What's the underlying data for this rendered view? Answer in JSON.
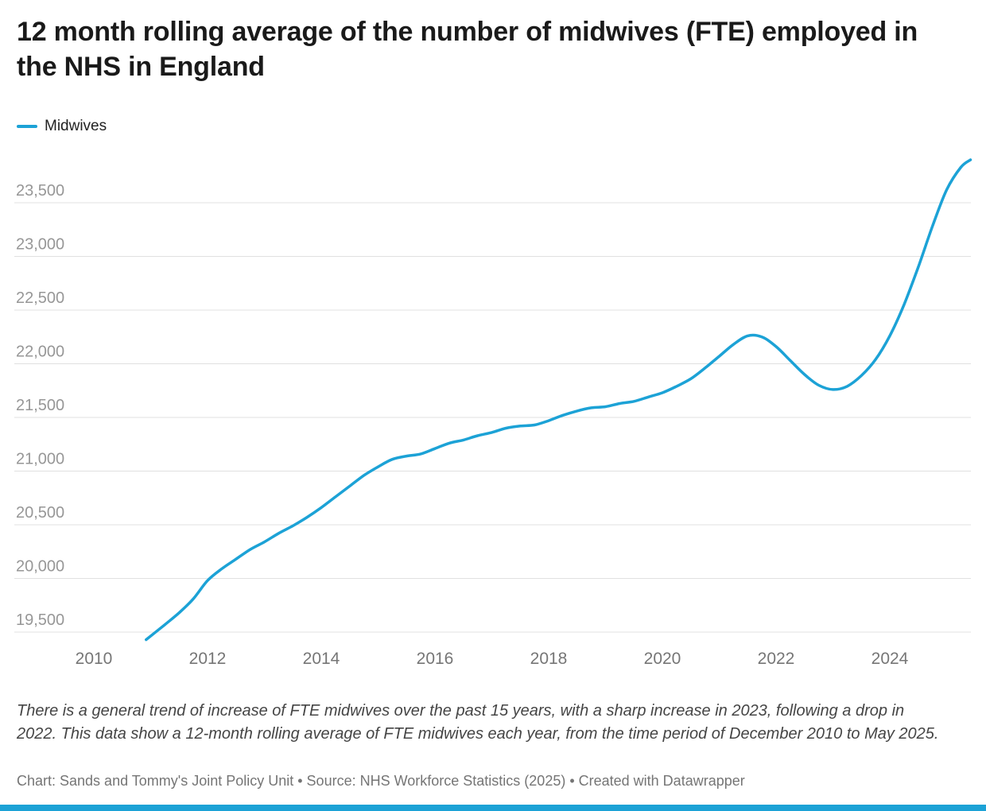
{
  "page": {
    "title": "12 month rolling average of the number of midwives (FTE) employed in the NHS in England",
    "description": "There is a general trend of increase of FTE midwives over the past 15 years, with a sharp increase in 2023, following a drop in 2022. This data show a 12-month rolling average of FTE midwives each year, from the time period of December 2010 to May 2025.",
    "credit": "Chart: Sands and Tommy's Joint Policy Unit • Source: NHS Workforce Statistics (2025) • Created with Datawrapper"
  },
  "colors": {
    "accent": "#1CA2D6",
    "gridline": "#e0e0e0",
    "y_tick_label": "#979797",
    "x_tick_label": "#767676"
  },
  "chart_data": {
    "type": "line",
    "title": "12 month rolling average of the number of midwives (FTE) employed in the NHS in England",
    "xlabel": "",
    "ylabel": "",
    "grid": "horizontal",
    "legend_position": "top-left",
    "xlim": [
      2010,
      2025.42
    ],
    "ylim": [
      19300,
      23950
    ],
    "x_ticks": [
      2010,
      2012,
      2014,
      2016,
      2018,
      2020,
      2022,
      2024
    ],
    "y_ticks": [
      19500,
      20000,
      20500,
      21000,
      21500,
      22000,
      22500,
      23000,
      23500
    ],
    "series": [
      {
        "name": "Midwives",
        "color": "#1CA2D6",
        "x": [
          2010.92,
          2011.25,
          2011.5,
          2011.75,
          2012,
          2012.25,
          2012.5,
          2012.75,
          2013,
          2013.25,
          2013.5,
          2013.75,
          2014,
          2014.25,
          2014.5,
          2014.75,
          2015,
          2015.25,
          2015.5,
          2015.75,
          2016,
          2016.25,
          2016.5,
          2016.75,
          2017,
          2017.25,
          2017.5,
          2017.75,
          2018,
          2018.25,
          2018.5,
          2018.75,
          2019,
          2019.25,
          2019.5,
          2019.75,
          2020,
          2020.25,
          2020.5,
          2020.75,
          2021,
          2021.25,
          2021.5,
          2021.75,
          2022,
          2022.25,
          2022.5,
          2022.75,
          2023,
          2023.25,
          2023.5,
          2023.75,
          2024,
          2024.25,
          2024.5,
          2024.75,
          2025,
          2025.25,
          2025.42
        ],
        "values": [
          19430,
          19570,
          19680,
          19810,
          19980,
          20090,
          20180,
          20270,
          20340,
          20420,
          20490,
          20570,
          20660,
          20760,
          20860,
          20960,
          21040,
          21110,
          21140,
          21160,
          21210,
          21260,
          21290,
          21330,
          21360,
          21400,
          21420,
          21430,
          21470,
          21520,
          21560,
          21590,
          21600,
          21630,
          21650,
          21690,
          21730,
          21790,
          21860,
          21960,
          22070,
          22180,
          22260,
          22250,
          22160,
          22030,
          21900,
          21800,
          21760,
          21790,
          21890,
          22040,
          22260,
          22550,
          22900,
          23280,
          23620,
          23830,
          23900
        ]
      }
    ]
  }
}
